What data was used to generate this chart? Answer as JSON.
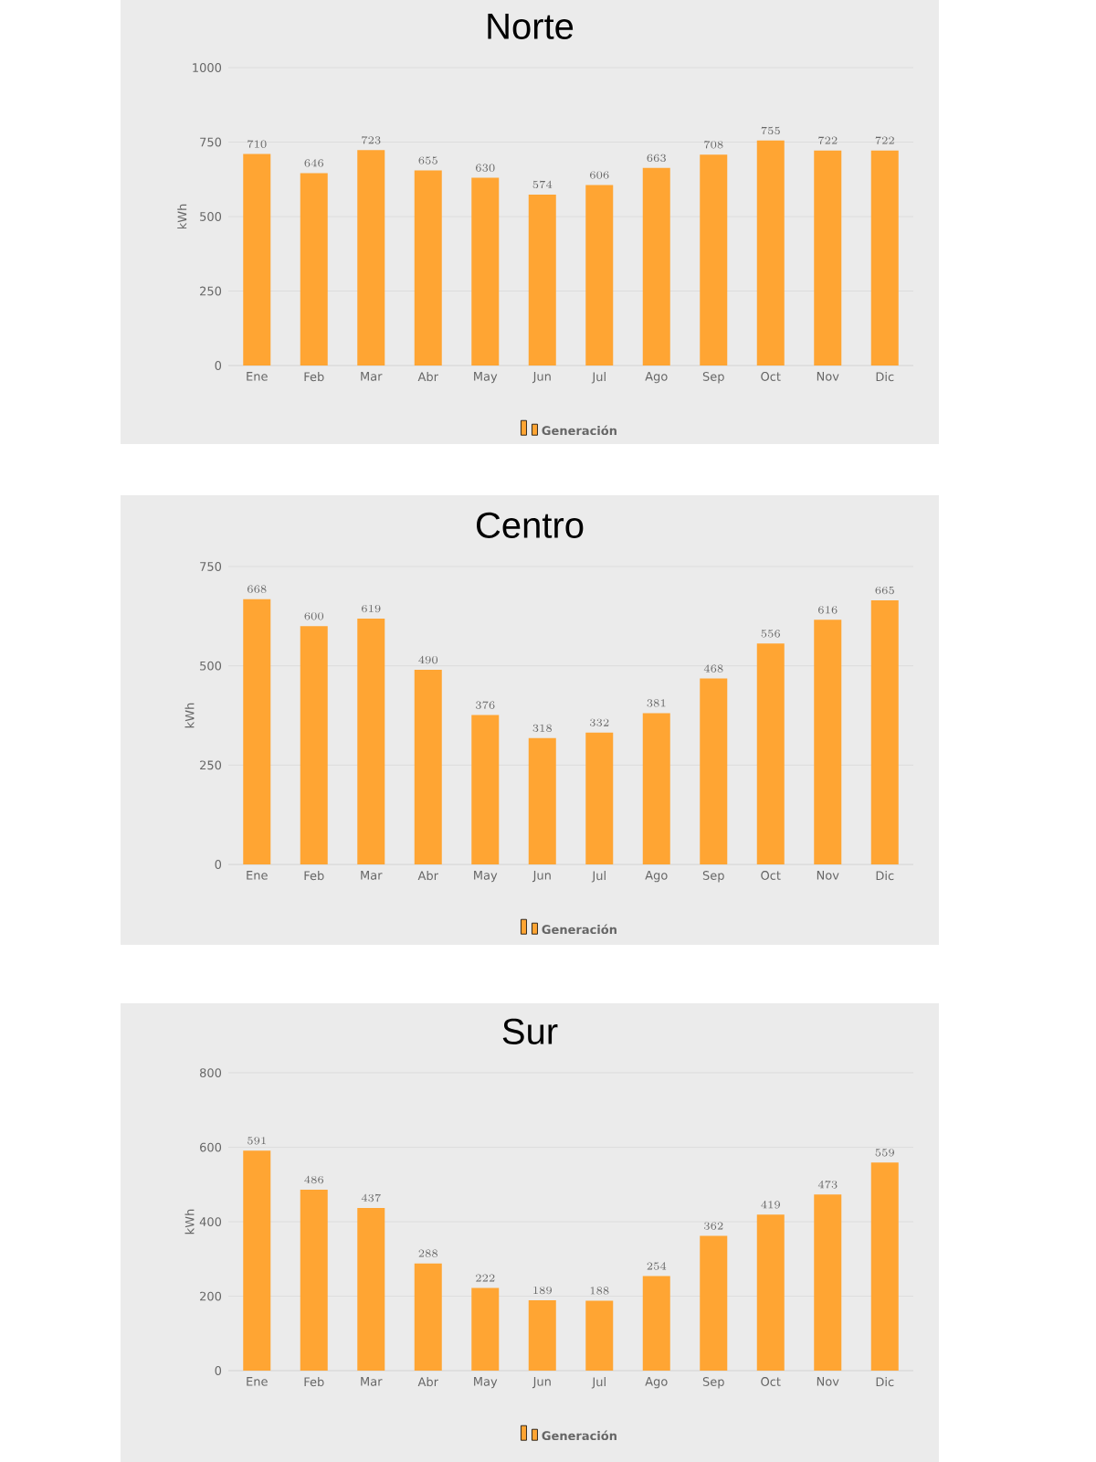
{
  "chart_data": [
    {
      "type": "bar",
      "title": "Norte",
      "ylabel": "kWh",
      "categories": [
        "Ene",
        "Feb",
        "Mar",
        "Abr",
        "May",
        "Jun",
        "Jul",
        "Ago",
        "Sep",
        "Oct",
        "Nov",
        "Dic"
      ],
      "series": [
        {
          "name": "Generación",
          "color": "#ffa533",
          "values": [
            710,
            646,
            723,
            655,
            630,
            574,
            606,
            663,
            708,
            755,
            722,
            722
          ]
        }
      ],
      "ylim": [
        0,
        1000
      ],
      "yticks": [
        0,
        250,
        500,
        750,
        1000
      ],
      "grid": "y",
      "legend": "bottom",
      "data_labels": true
    },
    {
      "type": "bar",
      "title": "Centro",
      "ylabel": "kWh",
      "categories": [
        "Ene",
        "Feb",
        "Mar",
        "Abr",
        "May",
        "Jun",
        "Jul",
        "Ago",
        "Sep",
        "Oct",
        "Nov",
        "Dic"
      ],
      "series": [
        {
          "name": "Generación",
          "color": "#ffa533",
          "values": [
            668,
            600,
            619,
            490,
            376,
            318,
            332,
            381,
            468,
            556,
            616,
            665
          ]
        }
      ],
      "ylim": [
        0,
        750
      ],
      "yticks": [
        0,
        250,
        500,
        750
      ],
      "grid": "y",
      "legend": "bottom",
      "data_labels": true
    },
    {
      "type": "bar",
      "title": "Sur",
      "ylabel": "kWh",
      "categories": [
        "Ene",
        "Feb",
        "Mar",
        "Abr",
        "May",
        "Jun",
        "Jul",
        "Ago",
        "Sep",
        "Oct",
        "Nov",
        "Dic"
      ],
      "series": [
        {
          "name": "Generación",
          "color": "#ffa533",
          "values": [
            591,
            486,
            437,
            288,
            222,
            189,
            188,
            254,
            362,
            419,
            473,
            559
          ]
        }
      ],
      "ylim": [
        0,
        800
      ],
      "yticks": [
        0,
        200,
        400,
        600,
        800
      ],
      "grid": "y",
      "legend": "bottom",
      "data_labels": true
    }
  ]
}
